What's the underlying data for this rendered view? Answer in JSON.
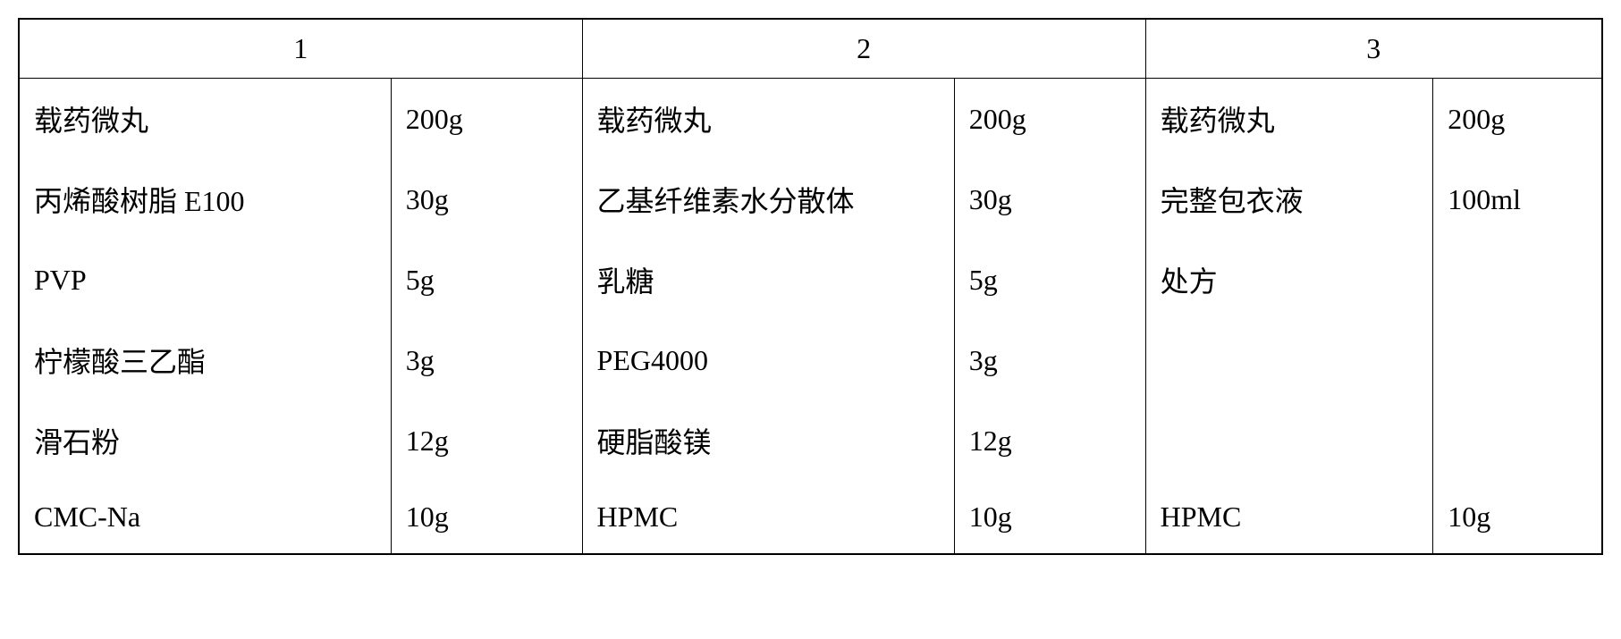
{
  "table": {
    "headers": [
      "1",
      "2",
      "3"
    ],
    "rows": [
      {
        "c1_label": "载药微丸",
        "c1_value": "200g",
        "c2_label": "载药微丸",
        "c2_value": "200g",
        "c3_label": "载药微丸",
        "c3_value": "200g"
      },
      {
        "c1_label": "丙烯酸树脂 E100",
        "c1_value": "30g",
        "c2_label": "乙基纤维素水分散体",
        "c2_value": "30g",
        "c3_label": "完整包衣液",
        "c3_value": "100ml"
      },
      {
        "c1_label": "PVP",
        "c1_value": "5g",
        "c2_label": "乳糖",
        "c2_value": "5g",
        "c3_label": "处方",
        "c3_value": ""
      },
      {
        "c1_label": "柠檬酸三乙酯",
        "c1_value": "3g",
        "c2_label": "PEG4000",
        "c2_value": "3g",
        "c3_label": "",
        "c3_value": ""
      },
      {
        "c1_label": "滑石粉",
        "c1_value": "12g",
        "c2_label": "硬脂酸镁",
        "c2_value": "12g",
        "c3_label": "",
        "c3_value": ""
      },
      {
        "c1_label": "CMC-Na",
        "c1_value": "10g",
        "c2_label": "HPMC",
        "c2_value": "10g",
        "c3_label": "HPMC",
        "c3_value": "10g"
      }
    ],
    "colors": {
      "border": "#000000",
      "background": "#ffffff",
      "text": "#000000"
    },
    "typography": {
      "header_fontsize": 32,
      "cell_fontsize": 32,
      "font_family_cjk": "SimSun",
      "font_family_latin": "Times New Roman"
    },
    "layout": {
      "border_width_outer": 2,
      "border_width_inner": 1.5,
      "cell_padding_vertical": 22,
      "cell_padding_horizontal": 16
    }
  }
}
